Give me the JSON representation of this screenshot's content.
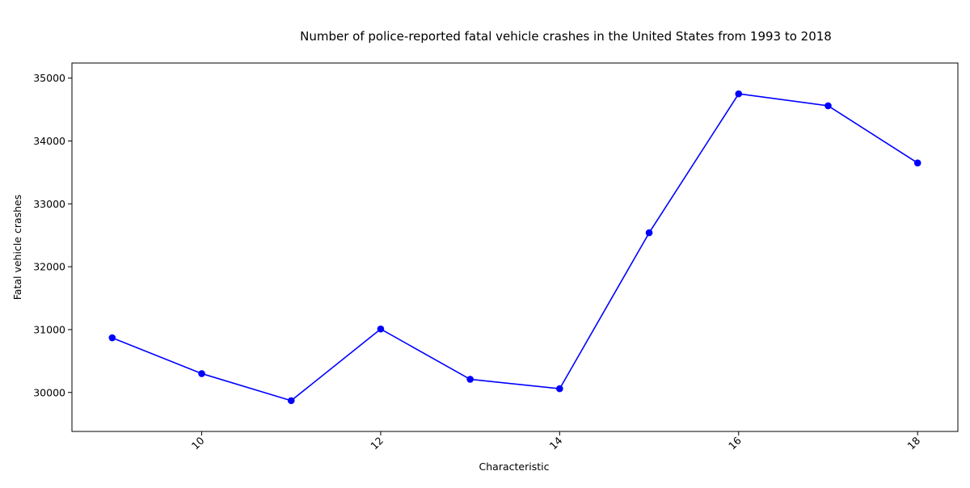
{
  "chart_data": {
    "type": "line",
    "title": "Number of police-reported fatal vehicle crashes in the United States from 1993 to 2018",
    "xlabel": "Characteristic",
    "ylabel": "Fatal vehicle crashes",
    "x": [
      9,
      10,
      11,
      12,
      13,
      14,
      15,
      16,
      17,
      18
    ],
    "series": [
      {
        "values": [
          30870,
          30300,
          29870,
          31010,
          30210,
          30060,
          32540,
          34750,
          34560,
          33650
        ]
      }
    ],
    "xlim": [
      8.55,
      18.45
    ],
    "ylim": [
      29380,
      35240
    ],
    "xticks": [
      10,
      12,
      14,
      16,
      18
    ],
    "xtick_labels": [
      "10",
      "12",
      "14",
      "16",
      "18"
    ],
    "yticks": [
      30000,
      31000,
      32000,
      33000,
      34000,
      35000
    ],
    "ytick_labels": [
      "30000",
      "31000",
      "32000",
      "33000",
      "34000",
      "35000"
    ],
    "grid": false,
    "markers": true,
    "colors": {
      "line": "#0000ff",
      "marker": "#0000ff",
      "axes": "#000000",
      "background": "#ffffff"
    }
  }
}
